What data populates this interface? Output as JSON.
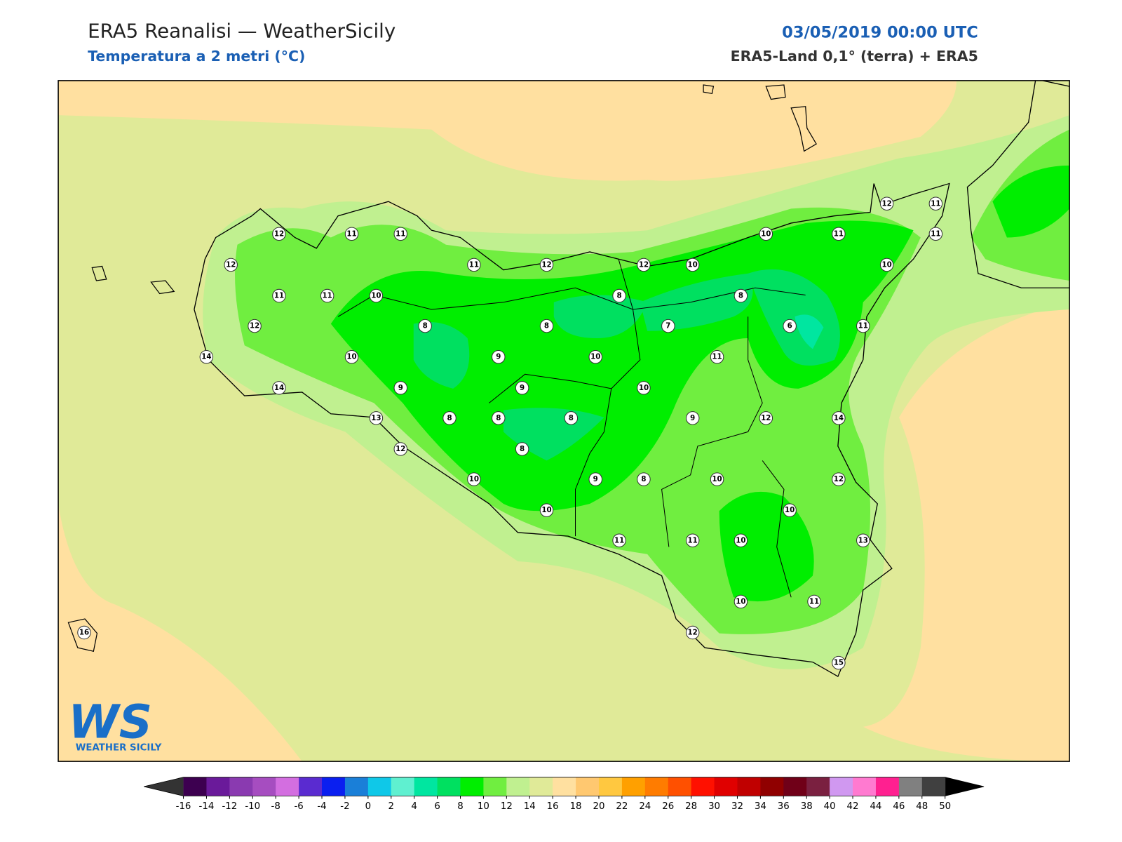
{
  "header": {
    "title": "ERA5 Reanalisi — WeatherSicily",
    "subtitle": "Temperatura a 2 metri (°C)",
    "datetime": "03/05/2019 00:00 UTC",
    "source": "ERA5-Land 0,1° (terra) + ERA5"
  },
  "logo": {
    "mark": "WS",
    "name": "WEATHER SICILY"
  },
  "stations": [
    12,
    11,
    11,
    12,
    11,
    11,
    10,
    12,
    14,
    10,
    14,
    13,
    9,
    8,
    8,
    12,
    11,
    10,
    9,
    8,
    9,
    8,
    12,
    8,
    10,
    8,
    10,
    9,
    8,
    11,
    12,
    10,
    8,
    7,
    10,
    9,
    11,
    11,
    10,
    12,
    8,
    10,
    10,
    10,
    12,
    6,
    10,
    11,
    11,
    14,
    12,
    15,
    11,
    13,
    12,
    10,
    11,
    11,
    16
  ],
  "colorbar": {
    "ticks": [
      -16,
      -14,
      -12,
      -10,
      -8,
      -6,
      -4,
      -2,
      0,
      2,
      4,
      6,
      8,
      10,
      12,
      14,
      16,
      18,
      20,
      22,
      24,
      26,
      28,
      30,
      32,
      34,
      36,
      38,
      40,
      42,
      44,
      46,
      48,
      50
    ],
    "colors": [
      "#3d0050",
      "#6a1a9a",
      "#8a3ab0",
      "#a64dc0",
      "#d36ee0",
      "#5a2bd0",
      "#0a1ff0",
      "#1a7fd8",
      "#0fc8e8",
      "#5ff0d0",
      "#00e6a0",
      "#00e060",
      "#00ee00",
      "#70ee40",
      "#c0f090",
      "#e0ea98",
      "#ffe0a0",
      "#ffc870",
      "#ffc840",
      "#ffa000",
      "#ff7c00",
      "#ff5000",
      "#ff1000",
      "#e00000",
      "#c00000",
      "#900000",
      "#700018",
      "#7a2040",
      "#d098f0",
      "#ff7ad0",
      "#ff2090",
      "#808080",
      "#404040"
    ],
    "under_color": "#333333",
    "over_color": "#000000"
  }
}
